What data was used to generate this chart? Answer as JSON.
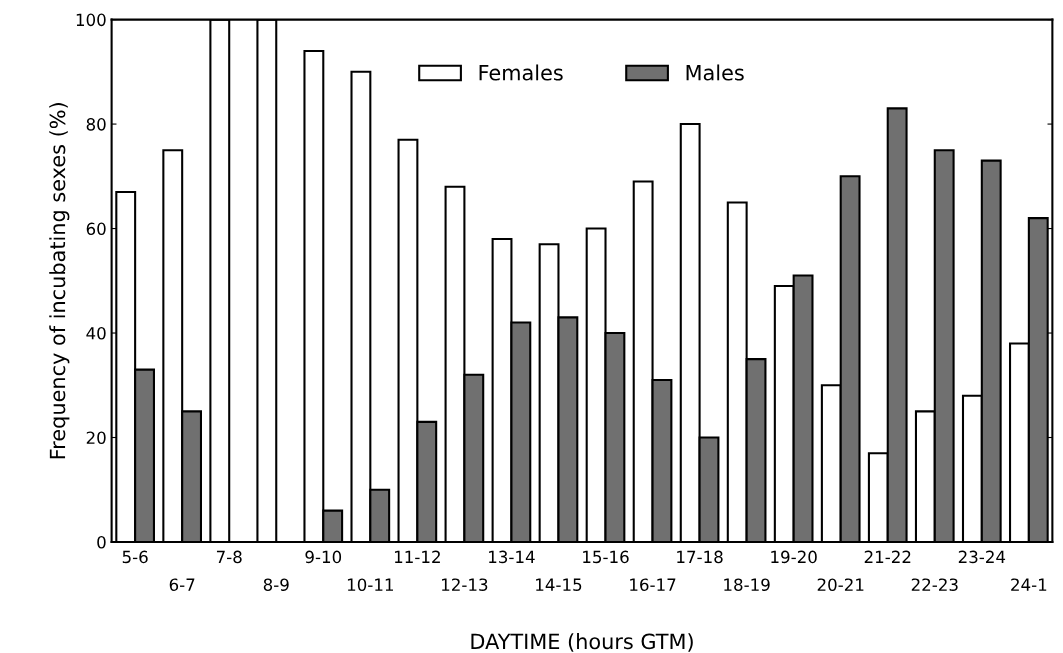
{
  "chart_data": {
    "type": "bar",
    "xlabel": "DAYTIME (hours GTM)",
    "ylabel": "Frequency of incubating sexes (%)",
    "categories": [
      "5-6",
      "6-7",
      "7-8",
      "8-9",
      "9-10",
      "10-11",
      "11-12",
      "12-13",
      "13-14",
      "14-15",
      "15-16",
      "16-17",
      "17-18",
      "18-19",
      "19-20",
      "20-21",
      "21-22",
      "22-23",
      "23-24",
      "24-1"
    ],
    "series": [
      {
        "name": "Females",
        "color": "#ffffff",
        "values": [
          67,
          75,
          100,
          100,
          94,
          90,
          77,
          68,
          58,
          57,
          60,
          69,
          80,
          65,
          49,
          30,
          17,
          25,
          28,
          38
        ]
      },
      {
        "name": "Males",
        "color": "#707070",
        "values": [
          33,
          25,
          0,
          0,
          6,
          10,
          23,
          32,
          42,
          43,
          40,
          31,
          20,
          35,
          51,
          70,
          83,
          75,
          73,
          62
        ]
      }
    ],
    "ylim": [
      0,
      100
    ],
    "yticks": [
      0,
      20,
      40,
      60,
      80,
      100
    ],
    "grid": false,
    "legend": "top"
  }
}
